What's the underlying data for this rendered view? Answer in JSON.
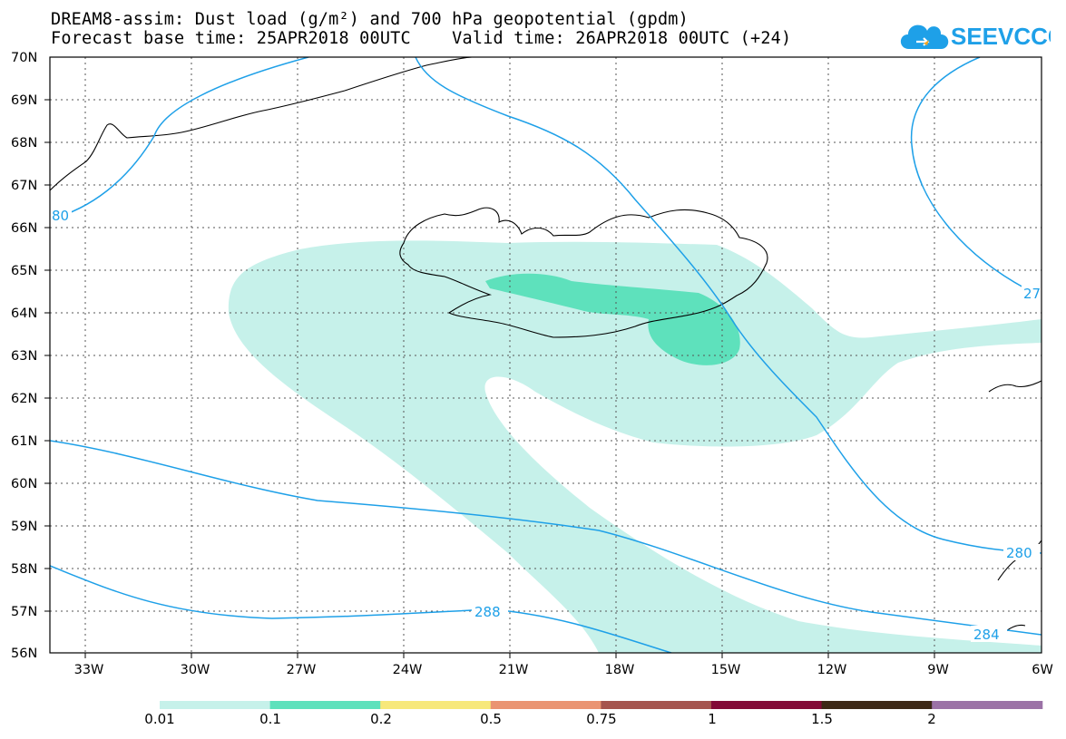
{
  "title": {
    "line1": "DREAM8-assim: Dust load (g/m²) and 700 hPa geopotential (gpdm)",
    "line2": "Forecast base time: 25APR2018 00UTC    Valid time: 26APR2018 00UTC (+24)"
  },
  "logo": {
    "text": "SEEVCCC",
    "icon": "cloud-icon",
    "color": "#1ea0e8"
  },
  "map": {
    "region": "Iceland / North Atlantic",
    "lat_labels": [
      "70N",
      "69N",
      "68N",
      "67N",
      "66N",
      "65N",
      "64N",
      "63N",
      "62N",
      "61N",
      "60N",
      "59N",
      "58N",
      "57N",
      "56N"
    ],
    "lon_labels": [
      "33W",
      "30W",
      "27W",
      "24W",
      "21W",
      "18W",
      "15W",
      "12W",
      "9W",
      "6W"
    ],
    "lat_range": [
      56,
      70
    ],
    "lon_range": [
      -34,
      -6
    ],
    "contour_color": "#1ea0e8",
    "contour_labels": [
      "80",
      "27",
      "280",
      "288",
      "284"
    ]
  },
  "colorbar": {
    "labels": [
      "0.01",
      "0.1",
      "0.2",
      "0.5",
      "0.75",
      "1",
      "1.5",
      "2"
    ],
    "colors": [
      "#c6f1ea",
      "#5ee1bc",
      "#f7e87a",
      "#ea9472",
      "#a5544e",
      "#820a37",
      "#3c2816",
      "#9b72a6"
    ]
  }
}
